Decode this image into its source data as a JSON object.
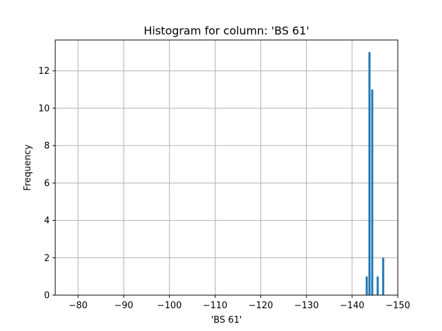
{
  "chart_data": {
    "type": "bar",
    "title": "Histogram for column: 'BS 61'",
    "xlabel": "'BS 61'",
    "ylabel": "Frequency",
    "xlim": [
      -75,
      -150
    ],
    "ylim": [
      0,
      13.65
    ],
    "grid": true,
    "color": "#1f77b4",
    "xticks": [
      -80,
      -90,
      -100,
      -110,
      -120,
      -130,
      -140,
      -150
    ],
    "xtick_labels": [
      "−80",
      "−90",
      "−100",
      "−110",
      "−120",
      "−130",
      "−140",
      "−150"
    ],
    "yticks": [
      0,
      2,
      4,
      6,
      8,
      10,
      12
    ],
    "ytick_labels": [
      "0",
      "2",
      "4",
      "6",
      "8",
      "10",
      "12"
    ],
    "x": [
      -143.2,
      -143.8,
      -144.4,
      -145.0,
      -145.6,
      -146.2,
      -146.8
    ],
    "values": [
      1,
      13,
      11,
      0,
      1,
      0,
      2
    ]
  }
}
